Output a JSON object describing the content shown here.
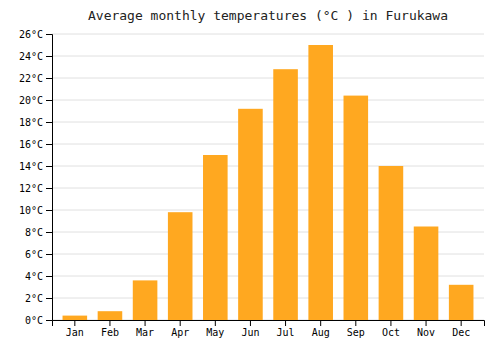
{
  "chart_data": {
    "type": "bar",
    "title": "Average monthly temperatures (°C ) in Furukawa",
    "categories": [
      "Jan",
      "Feb",
      "Mar",
      "Apr",
      "May",
      "Jun",
      "Jul",
      "Aug",
      "Sep",
      "Oct",
      "Nov",
      "Dec"
    ],
    "values": [
      0.4,
      0.8,
      3.6,
      9.8,
      15.0,
      19.2,
      22.8,
      25.0,
      20.4,
      14.0,
      8.5,
      3.2
    ],
    "color": "#FFA820",
    "ylim": [
      0,
      26
    ],
    "yticks": [
      {
        "value": 0,
        "label": "0°C"
      },
      {
        "value": 2,
        "label": "2°C"
      },
      {
        "value": 4,
        "label": "4°C"
      },
      {
        "value": 6,
        "label": "6°C"
      },
      {
        "value": 8,
        "label": "8°C"
      },
      {
        "value": 10,
        "label": "10°C"
      },
      {
        "value": 12,
        "label": "12°C"
      },
      {
        "value": 14,
        "label": "14°C"
      },
      {
        "value": 16,
        "label": "16°C"
      },
      {
        "value": 18,
        "label": "18°C"
      },
      {
        "value": 20,
        "label": "20°C"
      },
      {
        "value": 22,
        "label": "22°C"
      },
      {
        "value": 24,
        "label": "24°C"
      },
      {
        "value": 26,
        "label": "26°C"
      }
    ],
    "grid": true
  }
}
